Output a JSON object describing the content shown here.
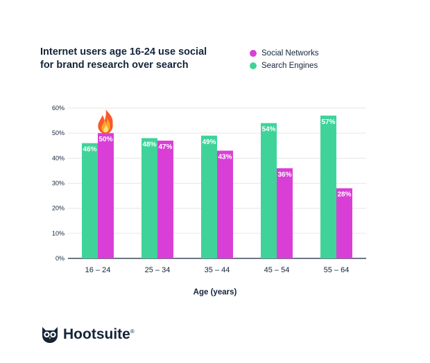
{
  "title_lines": [
    "Internet users age 16-24 use social",
    "for brand research over search"
  ],
  "colors": {
    "social": "#d93fd6",
    "search": "#3fd39a",
    "axis": "#13243a",
    "grid": "#e6e6e6"
  },
  "legend": [
    {
      "label": "Social Networks",
      "color": "#d93fd6"
    },
    {
      "label": "Search Engines",
      "color": "#3fd39a"
    }
  ],
  "chart_data": {
    "type": "bar",
    "title": "Internet users age 16-24 use social for brand research over search",
    "xlabel": "Age (years)",
    "ylabel": "",
    "ylim": [
      0,
      60
    ],
    "yticks": [
      "0%",
      "10%",
      "20%",
      "30%",
      "40%",
      "50%",
      "60%"
    ],
    "categories": [
      "16 – 24",
      "25 – 34",
      "35 – 44",
      "45 – 54",
      "55 – 64"
    ],
    "series": [
      {
        "name": "Search Engines",
        "values": [
          46,
          48,
          49,
          54,
          57
        ],
        "labels": [
          "46%",
          "48%",
          "49%",
          "54%",
          "57%"
        ],
        "color": "#3fd39a"
      },
      {
        "name": "Social Networks",
        "values": [
          50,
          47,
          43,
          36,
          28
        ],
        "labels": [
          "50%",
          "47%",
          "43%",
          "36%",
          "28%"
        ],
        "color": "#d93fd6"
      }
    ],
    "grid": true,
    "legend_position": "top-right"
  },
  "annotation_icon": "fire-icon",
  "brand": {
    "name": "Hootsuite",
    "reg": "®",
    "icon": "owl-logo-icon"
  }
}
